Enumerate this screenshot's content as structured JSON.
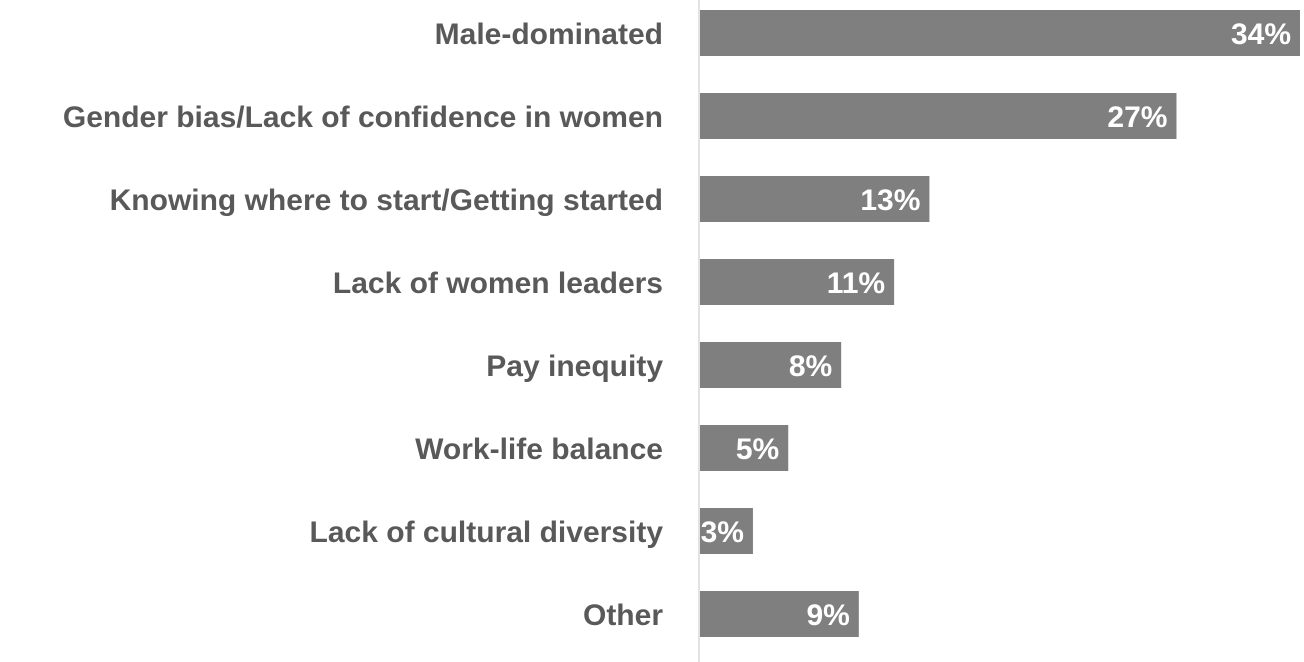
{
  "chart_data": {
    "type": "bar",
    "orientation": "horizontal",
    "categories": [
      "Male-dominated",
      "Gender bias/Lack of confidence in women",
      "Knowing where to start/Getting started",
      "Lack of women leaders",
      "Pay inequity",
      "Work-life balance",
      "Lack of cultural diversity",
      "Other"
    ],
    "values": [
      34,
      27,
      13,
      11,
      8,
      5,
      3,
      9
    ],
    "value_labels": [
      "34%",
      "27%",
      "13%",
      "11%",
      "8%",
      "5%",
      "3%",
      "9%"
    ],
    "title": "",
    "xlabel": "",
    "ylabel": "",
    "xlim": [
      0,
      34
    ],
    "grid": false,
    "legend": "none",
    "colors": {
      "bar": "#7f7f7f",
      "axis": "#d9d9d9",
      "category_text": "#595959",
      "value_text": "#ffffff"
    }
  }
}
